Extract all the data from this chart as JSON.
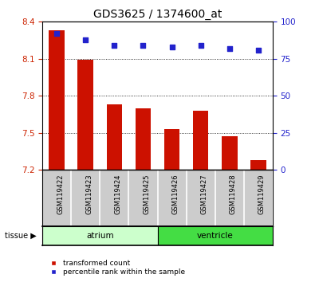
{
  "title": "GDS3625 / 1374600_at",
  "samples": [
    "GSM119422",
    "GSM119423",
    "GSM119424",
    "GSM119425",
    "GSM119426",
    "GSM119427",
    "GSM119428",
    "GSM119429"
  ],
  "transformed_counts": [
    8.33,
    8.09,
    7.73,
    7.7,
    7.53,
    7.68,
    7.47,
    7.28
  ],
  "percentile_ranks": [
    92,
    88,
    84,
    84,
    83,
    84,
    82,
    81
  ],
  "ylim_left": [
    7.2,
    8.4
  ],
  "ylim_right": [
    0,
    100
  ],
  "yticks_left": [
    7.2,
    7.5,
    7.8,
    8.1,
    8.4
  ],
  "yticks_right": [
    0,
    25,
    50,
    75,
    100
  ],
  "bar_color": "#CC1100",
  "dot_color": "#2222CC",
  "bar_bottom": 7.2,
  "tissue_groups": [
    {
      "label": "atrium",
      "start": 0,
      "end": 4,
      "color": "#CCFFCC"
    },
    {
      "label": "ventricle",
      "start": 4,
      "end": 8,
      "color": "#44DD44"
    }
  ],
  "tissue_label": "tissue",
  "legend_items": [
    {
      "label": "transformed count",
      "color": "#CC1100"
    },
    {
      "label": "percentile rank within the sample",
      "color": "#2222CC"
    }
  ],
  "grid_color": "#000000",
  "tick_label_color_left": "#CC2200",
  "tick_label_color_right": "#2222CC",
  "sample_box_color": "#CCCCCC",
  "fig_width": 3.95,
  "fig_height": 3.54,
  "dpi": 100
}
